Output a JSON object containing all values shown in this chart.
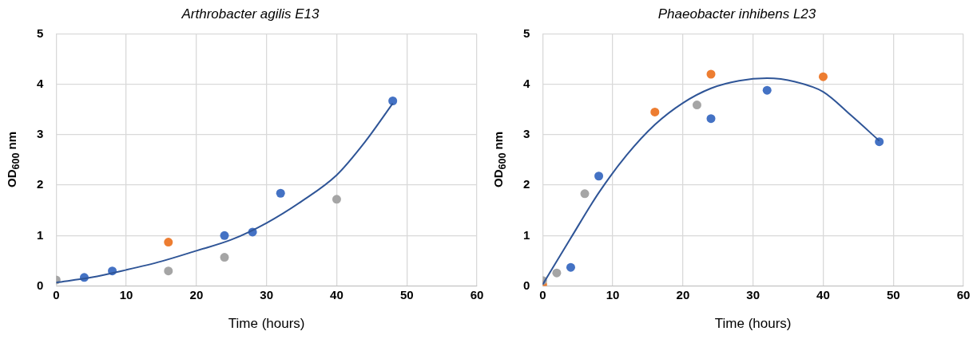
{
  "chart_data": [
    {
      "type": "scatter",
      "title": "Arthrobacter agilis E13",
      "xlabel": "Time (hours)",
      "ylabel": "OD$_{600}$ nm",
      "xlim": [
        0,
        60
      ],
      "xticks": [
        0,
        10,
        20,
        30,
        40,
        50,
        60
      ],
      "ylim": [
        0,
        5
      ],
      "yticks": [
        0,
        1,
        2,
        3,
        4,
        5
      ],
      "grid": true,
      "legend": false,
      "marker": "circle",
      "series": [
        {
          "color": "#4472c4",
          "x": [
            4,
            8,
            24,
            28,
            32,
            48
          ],
          "values": [
            0.17,
            0.3,
            1.0,
            1.07,
            1.84,
            3.67
          ]
        },
        {
          "color": "#a5a5a5",
          "x": [
            0,
            16,
            24,
            40
          ],
          "values": [
            0.12,
            0.3,
            0.57,
            1.72
          ]
        },
        {
          "color": "#ed7d31",
          "x": [
            16
          ],
          "values": [
            0.87
          ]
        },
        {
          "type": "line",
          "color": "#2f5597",
          "marker": "none",
          "x": [
            0,
            5,
            10,
            15,
            20,
            25,
            30,
            35,
            40,
            44,
            48
          ],
          "values": [
            0.07,
            0.17,
            0.32,
            0.49,
            0.7,
            0.92,
            1.25,
            1.68,
            2.2,
            2.85,
            3.62
          ]
        }
      ]
    },
    {
      "type": "scatter",
      "title": "Phaeobacter inhibens L23",
      "xlabel": "Time (hours)",
      "ylabel": "OD$_{600}$ nm",
      "xlim": [
        0,
        60
      ],
      "xticks": [
        0,
        10,
        20,
        30,
        40,
        50,
        60
      ],
      "ylim": [
        0,
        5
      ],
      "yticks": [
        0,
        1,
        2,
        3,
        4,
        5
      ],
      "grid": true,
      "legend": false,
      "marker": "circle",
      "series": [
        {
          "color": "#4472c4",
          "x": [
            4,
            8,
            24,
            32,
            48
          ],
          "values": [
            0.37,
            2.18,
            3.32,
            3.88,
            2.86
          ]
        },
        {
          "color": "#a5a5a5",
          "x": [
            0,
            2,
            6,
            22
          ],
          "values": [
            0.11,
            0.26,
            1.83,
            3.59
          ]
        },
        {
          "color": "#ed7d31",
          "x": [
            0,
            16,
            24,
            40
          ],
          "values": [
            0.03,
            3.45,
            4.2,
            4.15
          ]
        },
        {
          "type": "line",
          "color": "#2f5597",
          "marker": "none",
          "x": [
            0,
            4,
            8,
            12,
            16,
            20,
            24,
            28,
            32,
            36,
            40,
            44,
            48
          ],
          "values": [
            0.03,
            0.95,
            1.85,
            2.6,
            3.2,
            3.63,
            3.92,
            4.07,
            4.12,
            4.05,
            3.85,
            3.38,
            2.88
          ]
        }
      ]
    }
  ]
}
